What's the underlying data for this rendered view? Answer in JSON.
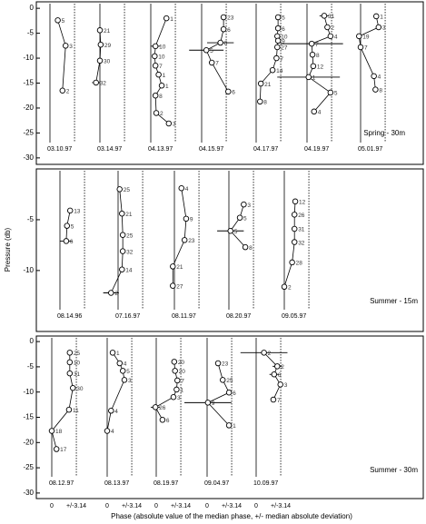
{
  "ylabel": "Pressure (db)",
  "xlabel": "Phase (absolute value of the median phase, +/- median absolute deviation)",
  "chart_data": [
    {
      "type": "line",
      "label": "Spring - 30m",
      "ylim": [
        -31.3,
        1.3
      ],
      "yticks": [
        0,
        -5,
        -10,
        -15,
        -20,
        -25,
        -30
      ],
      "xlim": [
        -1,
        5.5
      ],
      "xticks": [
        0,
        {
          "value": 3.14,
          "label": "+/-3.14"
        }
      ],
      "subplots": [
        {
          "date": "03.10.97",
          "x": [
            1.0,
            2.0,
            1.6
          ],
          "y": [
            -2.4,
            -7.5,
            -16.5
          ],
          "labels": [
            "5",
            "3",
            "2"
          ],
          "xerr": [
            null,
            null,
            null
          ]
        },
        {
          "date": "03.14.97",
          "x": [
            0,
            0.1,
            0,
            -0.5
          ],
          "y": [
            -4.4,
            -7.3,
            -10.5,
            -14.9
          ],
          "labels": [
            "21",
            "29",
            "30",
            "32"
          ],
          "xerr": [
            null,
            null,
            null,
            0.5
          ]
        },
        {
          "date": "04.13.97",
          "x": [
            2.0,
            0.6,
            0.5,
            0.6,
            1.0,
            1.4,
            0.6,
            0.7,
            2.3
          ],
          "y": [
            -2.0,
            -7.6,
            -9.6,
            -11.5,
            -13.3,
            -15.5,
            -17.5,
            -21,
            -23.1
          ],
          "labels": [
            "1",
            "10",
            "10",
            "7",
            "1",
            "1",
            "8",
            "2",
            "3"
          ],
          "xerr": [
            null,
            0.6,
            null,
            null,
            null,
            null,
            null,
            null,
            null
          ]
        },
        {
          "date": "04.15.97",
          "x": [
            2.8,
            2.8,
            2.4,
            0.6,
            1.3,
            3.4
          ],
          "y": [
            -1.8,
            -4.2,
            -6.9,
            -8.4,
            -10.9,
            -16.7
          ],
          "labels": [
            "23",
            "6",
            "8",
            "5",
            "7",
            "6"
          ],
          "xerr": [
            null,
            null,
            1.7,
            2.2,
            null,
            null
          ]
        },
        {
          "date": "04.17.97",
          "x": [
            2.8,
            2.8,
            2.7,
            2.8,
            2.7,
            2.6,
            2.1,
            0.6,
            0.5
          ],
          "y": [
            -1.8,
            -4,
            -5.6,
            -6.5,
            -7.8,
            -10,
            -12.4,
            -15.1,
            -18.7
          ],
          "labels": [
            "5",
            "6",
            "10",
            "9",
            "27",
            "7",
            "14",
            "21",
            "8"
          ],
          "xerr": [
            null,
            null,
            null,
            null,
            null,
            null,
            null,
            null,
            null
          ]
        },
        {
          "date": "04.19.97",
          "x": [
            2.2,
            2.6,
            3.0,
            0.6,
            0.7,
            0.8,
            0.2,
            3.0,
            0.9
          ],
          "y": [
            -1.5,
            -3.8,
            -5.6,
            -7.1,
            -9.3,
            -11.6,
            -13.8,
            -16.9,
            -20.7
          ],
          "labels": [
            "31",
            "2",
            "4",
            "7",
            "8",
            "12",
            "1",
            "5",
            "4"
          ],
          "xerr": [
            0.6,
            null,
            null,
            4,
            null,
            null,
            4,
            null,
            null
          ]
        },
        {
          "date": "05.01.97",
          "x": [
            2.0,
            2.3,
            -0.2,
            0,
            1.7,
            1.9
          ],
          "y": [
            -1.6,
            -3.8,
            -5.6,
            -7.8,
            -13.6,
            -16.3
          ],
          "labels": [
            "1",
            "3",
            "19",
            "7",
            "4",
            "8"
          ],
          "xerr": [
            null,
            null,
            null,
            null,
            null,
            null
          ]
        }
      ]
    },
    {
      "type": "line",
      "label": "Summer - 15m",
      "ylim": [
        -16,
        0
      ],
      "yticks": [
        -5,
        -10
      ],
      "xlim": [
        -1,
        5.5
      ],
      "xticks": [
        0,
        {
          "value": 3.14,
          "label": "+/-3.14"
        }
      ],
      "subplots": [
        {
          "date": "08.14.96",
          "x": [
            1.3,
            0.9,
            0.8
          ],
          "y": [
            -4.1,
            -5.6,
            -7.1
          ],
          "labels": [
            "13",
            "5",
            "6"
          ],
          "xerr": [
            null,
            null,
            0.8
          ]
        },
        {
          "date": "07.16.97",
          "x": [
            0.2,
            0.5,
            0.6,
            0.6,
            0.5,
            -0.9
          ],
          "y": [
            -2.0,
            -4.4,
            -6.5,
            -8.1,
            -9.9,
            -12.2
          ],
          "labels": [
            "25",
            "21",
            "25",
            "32",
            "14",
            "2"
          ],
          "xerr": [
            null,
            null,
            null,
            null,
            null,
            1
          ]
        },
        {
          "date": "08.11.97",
          "x": [
            0.9,
            1.5,
            1.3,
            -0.2,
            -0.2
          ],
          "y": [
            -1.9,
            -4.9,
            -7.0,
            -9.6,
            -11.5
          ],
          "labels": [
            "4",
            "9",
            "23",
            "21",
            "27"
          ],
          "xerr": [
            null,
            null,
            null,
            null,
            null
          ]
        },
        {
          "date": "08.20.97",
          "x": [
            1.9,
            1.4,
            0.2,
            2.1
          ],
          "y": [
            -3.5,
            -4.8,
            -6.1,
            -7.7
          ],
          "labels": [
            "3",
            "5",
            "5",
            "8"
          ],
          "xerr": [
            null,
            null,
            1.7,
            null
          ]
        },
        {
          "date": "09.05.97",
          "x": [
            1.4,
            1.3,
            1.3,
            1.3,
            1.0,
            0
          ],
          "y": [
            -3.2,
            -4.5,
            -5.9,
            -7.2,
            -9.2,
            -11.6
          ],
          "labels": [
            "12",
            "26",
            "31",
            "32",
            "28",
            "2"
          ],
          "xerr": [
            null,
            null,
            null,
            null,
            null,
            null
          ]
        }
      ]
    },
    {
      "type": "line",
      "label": "Summer - 30m",
      "ylim": [
        -31.1,
        1.1
      ],
      "yticks": [
        0,
        -5,
        -10,
        -15,
        -20,
        -25,
        -30
      ],
      "xlim": [
        -1,
        5.5
      ],
      "xticks": [
        0,
        {
          "value": 3.14,
          "label": "+/-3.14"
        }
      ],
      "subplots": [
        {
          "date": "08.12.97",
          "x": [
            2.3,
            2.3,
            2.3,
            2.7,
            2.2,
            0,
            0.6
          ],
          "y": [
            -2.2,
            -4.1,
            -6.3,
            -9.2,
            -13.5,
            -17.7,
            -21.3
          ],
          "labels": [
            "25",
            "10",
            "31",
            "30",
            "11",
            "18",
            "17"
          ],
          "xerr": [
            null,
            null,
            null,
            null,
            null,
            null,
            null
          ]
        },
        {
          "date": "08.13.97",
          "x": [
            0.7,
            1.6,
            2.0,
            2.2,
            0.5,
            0
          ],
          "y": [
            -2.2,
            -4.3,
            -5.8,
            -7.6,
            -13.7,
            -17.7
          ],
          "labels": [
            "1",
            "4",
            "5",
            "3",
            "4",
            "4"
          ],
          "xerr": [
            null,
            null,
            null,
            null,
            null,
            null
          ]
        },
        {
          "date": "08.19.97",
          "x": [
            2.3,
            2.4,
            2.7,
            2.6,
            2.2,
            -0.1,
            0.8
          ],
          "y": [
            -4.0,
            -5.8,
            -7.7,
            -9.5,
            -11,
            -13,
            -15.5
          ],
          "labels": [
            "20",
            "20",
            "7",
            "1",
            "3",
            "26",
            "6"
          ],
          "xerr": [
            null,
            null,
            null,
            null,
            null,
            0.6,
            null
          ]
        },
        {
          "date": "09.04.97",
          "x": [
            1.4,
            2.0,
            2.8,
            0.1,
            2.8
          ],
          "y": [
            -4.3,
            -7.6,
            -10.1,
            -12.1,
            -16.6
          ],
          "labels": [
            "23",
            "25",
            "6",
            "9",
            "1"
          ],
          "xerr": [
            null,
            null,
            null,
            3,
            null
          ]
        },
        {
          "date": "10.09.97",
          "x": [
            1.0,
            2.7,
            2.3,
            3.1,
            2.2
          ],
          "y": [
            -2.2,
            -4.9,
            -6.5,
            -8.5,
            -11.5
          ],
          "labels": [
            "2",
            "2",
            "6",
            "3",
            "7"
          ],
          "xerr": [
            3,
            0.6,
            0.6,
            null,
            null
          ]
        }
      ]
    }
  ]
}
